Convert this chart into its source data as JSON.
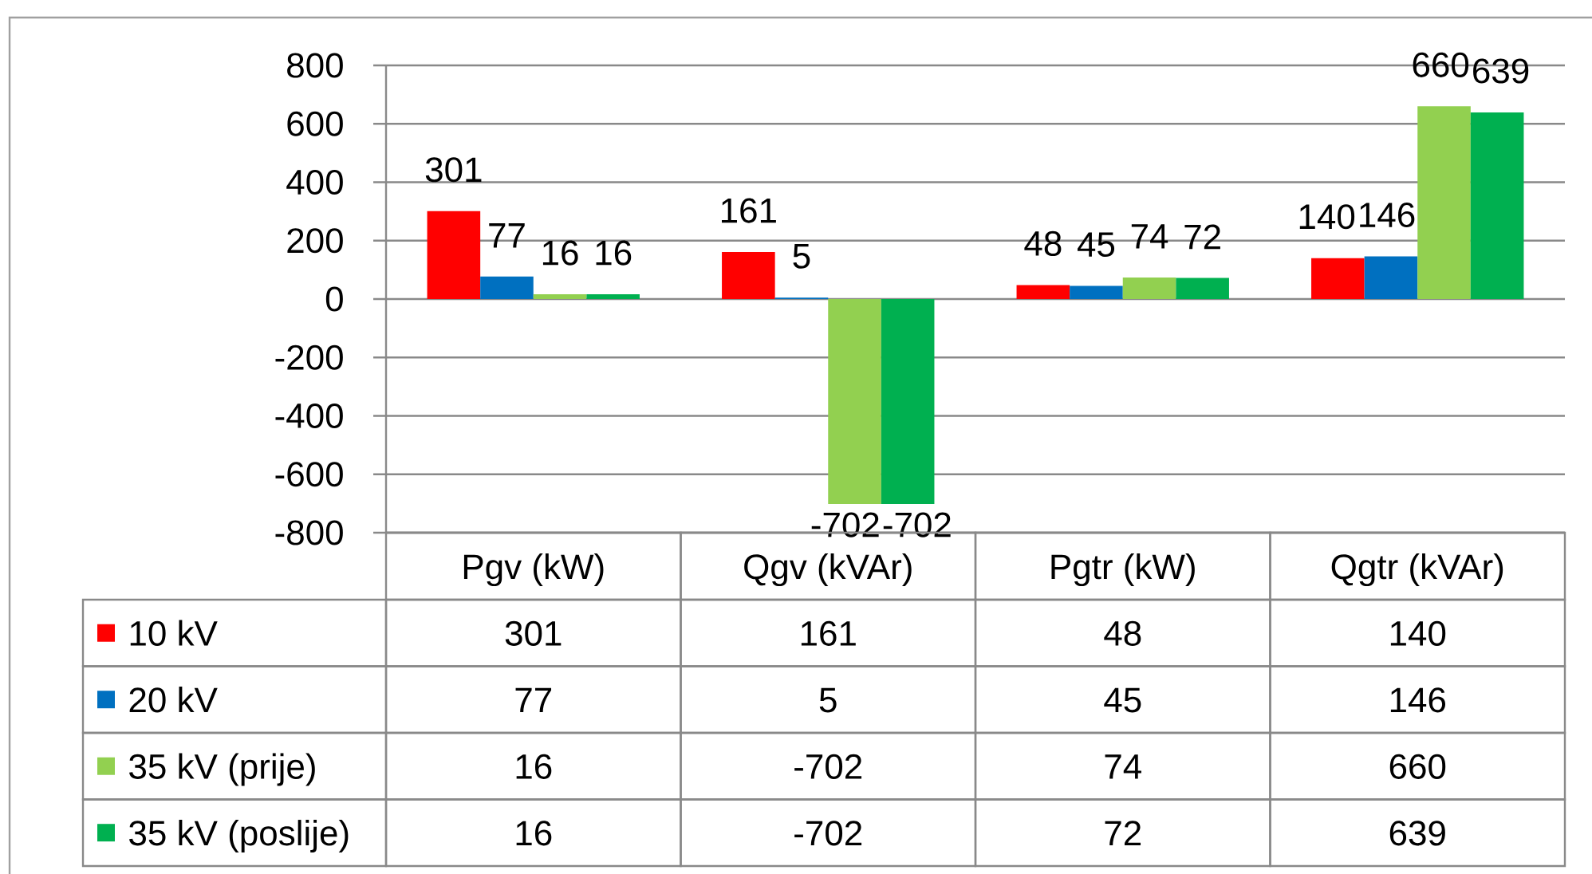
{
  "chart_data": {
    "type": "bar",
    "categories": [
      "Pgv (kW)",
      "Qgv (kVAr)",
      "Pgtr (kW)",
      "Qgtr (kVAr)"
    ],
    "series": [
      {
        "name": "10 kV",
        "color": "#ff0000",
        "values": [
          301,
          161,
          48,
          140
        ],
        "value_labels": [
          "301",
          "161",
          "48",
          "140"
        ]
      },
      {
        "name": "20 kV",
        "color": "#0070c0",
        "values": [
          77,
          5,
          45,
          146
        ],
        "value_labels": [
          "77",
          "5",
          "45",
          "146"
        ]
      },
      {
        "name": "35 kV (prije)",
        "color": "#92d050",
        "values": [
          16,
          -702,
          74,
          660
        ],
        "value_labels": [
          "16",
          "-702",
          "74",
          "660"
        ]
      },
      {
        "name": "35 kV (poslije)",
        "color": "#00b050",
        "values": [
          16,
          -702,
          72,
          639
        ],
        "value_labels": [
          "16",
          "-702",
          "72",
          "639"
        ]
      }
    ],
    "ylim": [
      -800,
      800
    ],
    "yticks": [
      -800,
      -600,
      -400,
      -200,
      0,
      200,
      400,
      600,
      800
    ],
    "grid": "y",
    "legend": "bottom",
    "data_labels": true
  }
}
